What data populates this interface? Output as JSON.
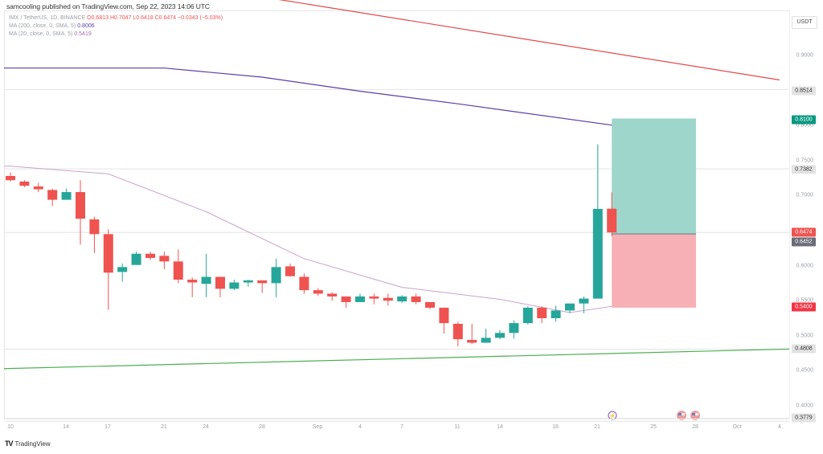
{
  "header": {
    "publisher_line": "samcooling published on TradingView.com, Sep 22, 2023 14:06 UTC"
  },
  "legend": {
    "symbol": "IMX / TetherUS, 1D, BINANCE",
    "ohlc": "O0.6813 H0.7047 L0.6418 C0.6474 −0.0343 (−5.03%)",
    "ma200_label": "MA (200, close, 0, SMA, 5)",
    "ma200_value": "0.8006",
    "ma20_label": "MA (20, close, 0, SMA, 5)",
    "ma20_value": "0.5419"
  },
  "price_axis": {
    "currency": "USDT",
    "ticks": [
      "0.9000",
      "0.8000",
      "0.7500",
      "0.7000",
      "0.6000",
      "0.5500",
      "0.5000",
      "0.4500",
      "0.4000"
    ],
    "labels": {
      "l8514": "0.8514",
      "l8100": "0.8100",
      "l7382": "0.7382",
      "l6474": "0.6474",
      "l6452": "0.6452",
      "l5400": "0.5400",
      "l4808": "0.4808",
      "l3779": "0.3779"
    }
  },
  "time_axis": {
    "ticks": [
      "10",
      "14",
      "17",
      "21",
      "24",
      "28",
      "Sep",
      "4",
      "7",
      "11",
      "14",
      "18",
      "21",
      "25",
      "28",
      "Oct",
      "4"
    ]
  },
  "footer": {
    "brand": "TradingView",
    "logo_glyph": "TV"
  },
  "colors": {
    "up": "#26a69a",
    "down": "#ef5350",
    "ma200": "#5b3fa6",
    "ma20": "#c9a3c9",
    "resistance_line": "#e04b4b",
    "support_line": "#4caf50",
    "target_zone": "#9fd6cb",
    "stop_zone": "#f7b0b6"
  },
  "chart_data": {
    "type": "candlestick",
    "title": "IMX / TetherUS, 1D, BINANCE",
    "xlabel": "",
    "ylabel": "USDT",
    "ylim": [
      0.37,
      0.98
    ],
    "grid": false,
    "indicators": [
      {
        "name": "MA (200, close, 0, SMA, 5)",
        "last": 0.8006
      },
      {
        "name": "MA (20, close, 0, SMA, 5)",
        "last": 0.5419
      }
    ],
    "horizontal_levels": [
      0.8514,
      0.7382,
      0.6474,
      0.4808,
      0.3779
    ],
    "position_tool": {
      "entry": 0.6452,
      "target": 0.81,
      "stop": 0.54
    },
    "trendlines": [
      {
        "name": "descending resistance",
        "from": {
          "date": "Aug 26",
          "price": 0.99
        },
        "to": {
          "date": "Oct 4",
          "price": 0.865
        }
      },
      {
        "name": "ascending support",
        "from": {
          "date": "Aug 10",
          "price": 0.453
        },
        "to": {
          "date": "Oct 4",
          "price": 0.481
        }
      }
    ],
    "candles": [
      {
        "date": "Aug 10",
        "o": 0.728,
        "h": 0.733,
        "l": 0.72,
        "c": 0.722
      },
      {
        "date": "Aug 11",
        "o": 0.72,
        "h": 0.722,
        "l": 0.712,
        "c": 0.714
      },
      {
        "date": "Aug 12",
        "o": 0.713,
        "h": 0.718,
        "l": 0.705,
        "c": 0.709
      },
      {
        "date": "Aug 13",
        "o": 0.708,
        "h": 0.71,
        "l": 0.685,
        "c": 0.694
      },
      {
        "date": "Aug 14",
        "o": 0.694,
        "h": 0.71,
        "l": 0.694,
        "c": 0.705
      },
      {
        "date": "Aug 15",
        "o": 0.705,
        "h": 0.722,
        "l": 0.63,
        "c": 0.667
      },
      {
        "date": "Aug 16",
        "o": 0.666,
        "h": 0.67,
        "l": 0.618,
        "c": 0.645
      },
      {
        "date": "Aug 17",
        "o": 0.645,
        "h": 0.652,
        "l": 0.537,
        "c": 0.59
      },
      {
        "date": "Aug 18",
        "o": 0.591,
        "h": 0.603,
        "l": 0.577,
        "c": 0.598
      },
      {
        "date": "Aug 19",
        "o": 0.601,
        "h": 0.62,
        "l": 0.601,
        "c": 0.617
      },
      {
        "date": "Aug 20",
        "o": 0.617,
        "h": 0.62,
        "l": 0.608,
        "c": 0.611
      },
      {
        "date": "Aug 21",
        "o": 0.614,
        "h": 0.62,
        "l": 0.595,
        "c": 0.606
      },
      {
        "date": "Aug 22",
        "o": 0.606,
        "h": 0.623,
        "l": 0.575,
        "c": 0.58
      },
      {
        "date": "Aug 23",
        "o": 0.58,
        "h": 0.583,
        "l": 0.555,
        "c": 0.576
      },
      {
        "date": "Aug 24",
        "o": 0.574,
        "h": 0.617,
        "l": 0.555,
        "c": 0.584
      },
      {
        "date": "Aug 25",
        "o": 0.584,
        "h": 0.584,
        "l": 0.555,
        "c": 0.567
      },
      {
        "date": "Aug 26",
        "o": 0.567,
        "h": 0.58,
        "l": 0.565,
        "c": 0.576
      },
      {
        "date": "Aug 27",
        "o": 0.576,
        "h": 0.58,
        "l": 0.57,
        "c": 0.579
      },
      {
        "date": "Aug 28",
        "o": 0.579,
        "h": 0.579,
        "l": 0.561,
        "c": 0.575
      },
      {
        "date": "Aug 29",
        "o": 0.575,
        "h": 0.61,
        "l": 0.555,
        "c": 0.598
      },
      {
        "date": "Aug 30",
        "o": 0.599,
        "h": 0.603,
        "l": 0.584,
        "c": 0.585
      },
      {
        "date": "Aug 31",
        "o": 0.584,
        "h": 0.589,
        "l": 0.56,
        "c": 0.565
      },
      {
        "date": "Sep 1",
        "o": 0.565,
        "h": 0.568,
        "l": 0.557,
        "c": 0.56
      },
      {
        "date": "Sep 2",
        "o": 0.56,
        "h": 0.562,
        "l": 0.55,
        "c": 0.556
      },
      {
        "date": "Sep 3",
        "o": 0.556,
        "h": 0.556,
        "l": 0.54,
        "c": 0.548
      },
      {
        "date": "Sep 4",
        "o": 0.548,
        "h": 0.56,
        "l": 0.548,
        "c": 0.556
      },
      {
        "date": "Sep 5",
        "o": 0.556,
        "h": 0.56,
        "l": 0.545,
        "c": 0.553
      },
      {
        "date": "Sep 6",
        "o": 0.554,
        "h": 0.56,
        "l": 0.543,
        "c": 0.55
      },
      {
        "date": "Sep 7",
        "o": 0.549,
        "h": 0.558,
        "l": 0.547,
        "c": 0.556
      },
      {
        "date": "Sep 8",
        "o": 0.556,
        "h": 0.56,
        "l": 0.545,
        "c": 0.548
      },
      {
        "date": "Sep 9",
        "o": 0.548,
        "h": 0.548,
        "l": 0.538,
        "c": 0.54
      },
      {
        "date": "Sep 10",
        "o": 0.54,
        "h": 0.54,
        "l": 0.503,
        "c": 0.518
      },
      {
        "date": "Sep 11",
        "o": 0.517,
        "h": 0.52,
        "l": 0.485,
        "c": 0.495
      },
      {
        "date": "Sep 12",
        "o": 0.494,
        "h": 0.517,
        "l": 0.488,
        "c": 0.49
      },
      {
        "date": "Sep 13",
        "o": 0.49,
        "h": 0.51,
        "l": 0.49,
        "c": 0.497
      },
      {
        "date": "Sep 14",
        "o": 0.497,
        "h": 0.508,
        "l": 0.495,
        "c": 0.504
      },
      {
        "date": "Sep 15",
        "o": 0.504,
        "h": 0.522,
        "l": 0.496,
        "c": 0.518
      },
      {
        "date": "Sep 16",
        "o": 0.518,
        "h": 0.542,
        "l": 0.516,
        "c": 0.54
      },
      {
        "date": "Sep 17",
        "o": 0.54,
        "h": 0.542,
        "l": 0.518,
        "c": 0.525
      },
      {
        "date": "Sep 18",
        "o": 0.525,
        "h": 0.543,
        "l": 0.52,
        "c": 0.536
      },
      {
        "date": "Sep 19",
        "o": 0.536,
        "h": 0.545,
        "l": 0.532,
        "c": 0.546
      },
      {
        "date": "Sep 20",
        "o": 0.546,
        "h": 0.556,
        "l": 0.532,
        "c": 0.553
      },
      {
        "date": "Sep 21",
        "o": 0.553,
        "h": 0.773,
        "l": 0.553,
        "c": 0.681
      },
      {
        "date": "Sep 22",
        "o": 0.6813,
        "h": 0.7047,
        "l": 0.6418,
        "c": 0.6474
      }
    ],
    "ma200_points": [
      {
        "date": "Aug 10",
        "v": 0.882
      },
      {
        "date": "Aug 21",
        "v": 0.882
      },
      {
        "date": "Aug 28",
        "v": 0.869
      },
      {
        "date": "Sep 4",
        "v": 0.849
      },
      {
        "date": "Sep 11",
        "v": 0.831
      },
      {
        "date": "Sep 22",
        "v": 0.8006
      }
    ],
    "ma20_points": [
      {
        "date": "Aug 10",
        "v": 0.742
      },
      {
        "date": "Aug 17",
        "v": 0.731
      },
      {
        "date": "Aug 24",
        "v": 0.677
      },
      {
        "date": "Aug 31",
        "v": 0.61
      },
      {
        "date": "Sep 7",
        "v": 0.569
      },
      {
        "date": "Sep 14",
        "v": 0.552
      },
      {
        "date": "Sep 19",
        "v": 0.533
      },
      {
        "date": "Sep 22",
        "v": 0.5419
      }
    ]
  }
}
